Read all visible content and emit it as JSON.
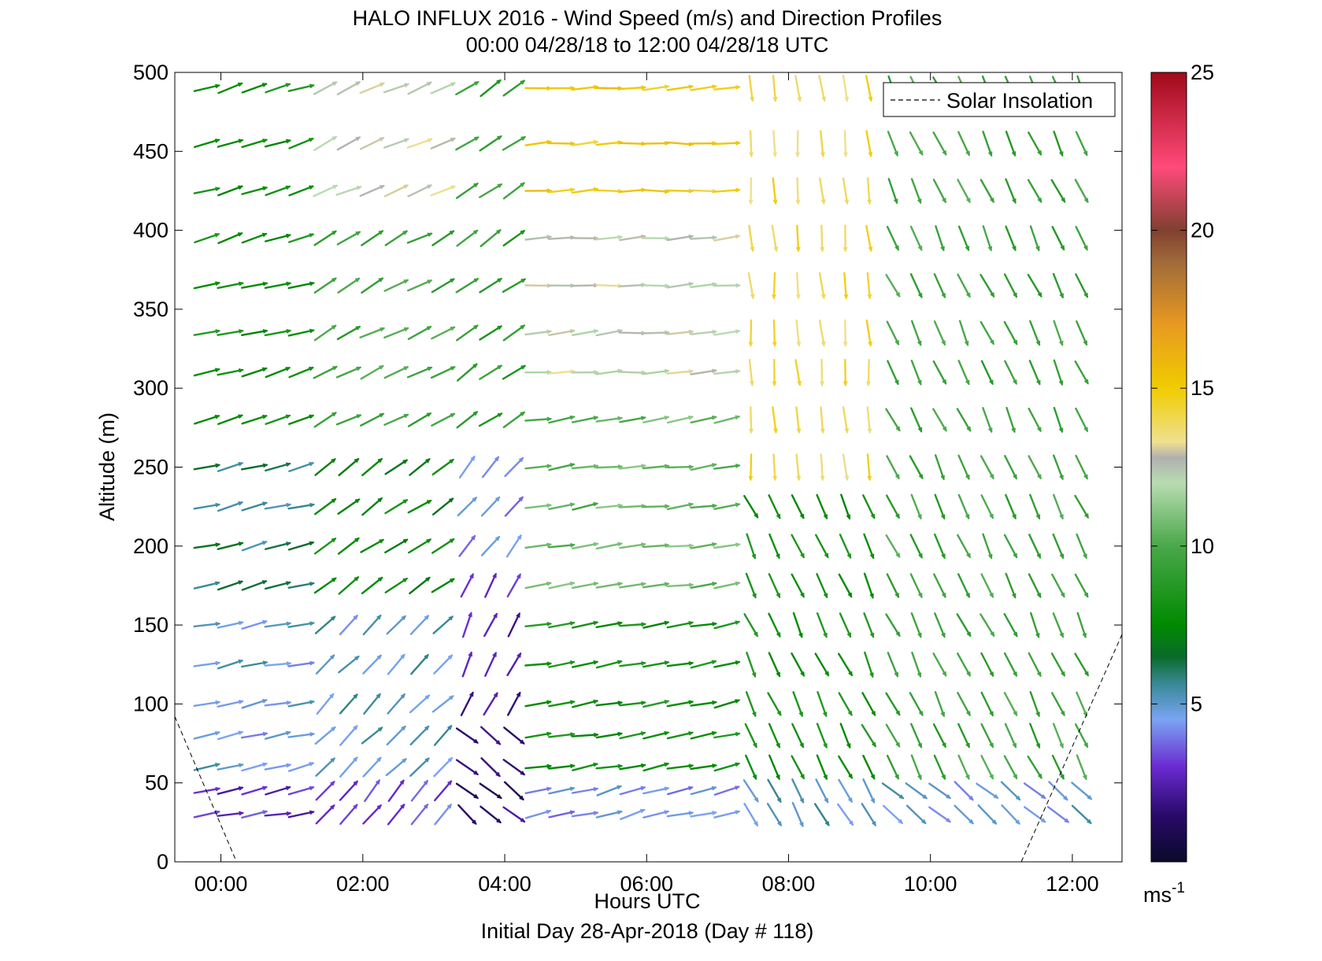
{
  "chart_data": {
    "type": "wind-barb-profile",
    "title": "HALO INFLUX 2016 - Wind Speed (m/s) and Direction Profiles",
    "subtitle": "00:00 04/28/18 to 12:00 04/28/18  UTC",
    "xlabel": "Hours UTC",
    "x_sublabel": "Initial Day 28-Apr-2018 (Day # 118)",
    "ylabel": "Altitude (m)",
    "x_ticks": [
      "00:00",
      "02:00",
      "04:00",
      "06:00",
      "08:00",
      "10:00",
      "12:00"
    ],
    "x_tick_hours": [
      0,
      2,
      4,
      6,
      8,
      10,
      12
    ],
    "xlim_hours": [
      -0.65,
      12.7
    ],
    "y_ticks": [
      "0",
      "50",
      "100",
      "150",
      "200",
      "250",
      "300",
      "350",
      "400",
      "450",
      "500"
    ],
    "ylim": [
      0,
      500
    ],
    "legend": {
      "label": "Solar Insolation",
      "placement": "top-right"
    },
    "colorbar": {
      "ticks": [
        "5",
        "10",
        "15",
        "20",
        "25"
      ],
      "range": [
        0,
        25
      ],
      "unit_label": "ms",
      "unit_exponent": "-1",
      "stops": [
        {
          "v": 0,
          "c": "#0a0a2a"
        },
        {
          "v": 1.5,
          "c": "#2a0a6a"
        },
        {
          "v": 3,
          "c": "#6a2ad0"
        },
        {
          "v": 4.5,
          "c": "#7aa4f4"
        },
        {
          "v": 5.6,
          "c": "#3a8a9a"
        },
        {
          "v": 6.5,
          "c": "#0a6a2a"
        },
        {
          "v": 7.5,
          "c": "#008a00"
        },
        {
          "v": 10,
          "c": "#4aa84a"
        },
        {
          "v": 12,
          "c": "#b8dcb0"
        },
        {
          "v": 12.8,
          "c": "#b0b0b0"
        },
        {
          "v": 13.3,
          "c": "#f0e090"
        },
        {
          "v": 15,
          "c": "#f0cc00"
        },
        {
          "v": 17,
          "c": "#e89a20"
        },
        {
          "v": 19,
          "c": "#a06a3a"
        },
        {
          "v": 20,
          "c": "#804030"
        },
        {
          "v": 22,
          "c": "#ff4a7a"
        },
        {
          "v": 25,
          "c": "#a00a1a"
        }
      ]
    },
    "times_hours": [
      -0.2,
      0.13,
      0.47,
      0.8,
      1.13,
      1.47,
      1.8,
      2.13,
      2.47,
      2.8,
      3.13,
      3.47,
      3.8,
      4.13,
      4.47,
      4.8,
      5.13,
      5.47,
      5.8,
      6.13,
      6.47,
      6.8,
      7.13,
      7.47,
      7.8,
      8.13,
      8.47,
      8.8,
      9.13,
      9.47,
      9.8,
      10.13,
      10.47,
      10.8,
      11.13,
      11.47,
      11.8,
      12.13
    ],
    "altitudes_m": [
      30,
      45,
      60,
      80,
      100,
      125,
      150,
      175,
      200,
      225,
      250,
      280,
      310,
      335,
      365,
      395,
      425,
      455,
      490
    ],
    "wind_direction_note": "direction_deg = bearing the wind blows toward (0 = north / up, 90 = east / right)",
    "regimes": [
      {
        "t0": -0.3,
        "t1": 1.2,
        "z0": 0,
        "z1": 60,
        "dir": 80,
        "speed": 3.0
      },
      {
        "t0": -0.3,
        "t1": 1.2,
        "z0": 60,
        "z1": 160,
        "dir": 78,
        "speed": 4.8
      },
      {
        "t0": -0.3,
        "t1": 1.2,
        "z0": 160,
        "z1": 270,
        "dir": 76,
        "speed": 6.0
      },
      {
        "t0": -0.3,
        "t1": 1.2,
        "z0": 270,
        "z1": 520,
        "dir": 74,
        "speed": 8.0
      },
      {
        "t0": 1.2,
        "t1": 3.3,
        "z0": 0,
        "z1": 60,
        "dir": 40,
        "speed": 3.5
      },
      {
        "t0": 1.2,
        "t1": 3.3,
        "z0": 60,
        "z1": 160,
        "dir": 45,
        "speed": 5.0
      },
      {
        "t0": 1.2,
        "t1": 3.3,
        "z0": 160,
        "z1": 280,
        "dir": 55,
        "speed": 7.5
      },
      {
        "t0": 1.2,
        "t1": 3.3,
        "z0": 280,
        "z1": 400,
        "dir": 62,
        "speed": 9.5
      },
      {
        "t0": 1.2,
        "t1": 3.3,
        "z0": 400,
        "z1": 520,
        "dir": 65,
        "speed": 12.5
      },
      {
        "t0": 3.3,
        "t1": 4.3,
        "z0": 0,
        "z1": 100,
        "dir": 130,
        "speed": 1.5
      },
      {
        "t0": 3.3,
        "t1": 4.3,
        "z0": 100,
        "z1": 180,
        "dir": 25,
        "speed": 2.5
      },
      {
        "t0": 3.3,
        "t1": 4.3,
        "z0": 180,
        "z1": 280,
        "dir": 40,
        "speed": 4.2
      },
      {
        "t0": 3.3,
        "t1": 4.3,
        "z0": 280,
        "z1": 520,
        "dir": 55,
        "speed": 9.0
      },
      {
        "t0": 4.3,
        "t1": 7.3,
        "z0": 0,
        "z1": 50,
        "dir": 75,
        "speed": 4.5
      },
      {
        "t0": 4.3,
        "t1": 7.3,
        "z0": 50,
        "z1": 170,
        "dir": 80,
        "speed": 8.0
      },
      {
        "t0": 4.3,
        "t1": 7.3,
        "z0": 170,
        "z1": 300,
        "dir": 82,
        "speed": 10.5
      },
      {
        "t0": 4.3,
        "t1": 7.3,
        "z0": 300,
        "z1": 400,
        "dir": 85,
        "speed": 12.5
      },
      {
        "t0": 4.3,
        "t1": 7.3,
        "z0": 400,
        "z1": 520,
        "dir": 88,
        "speed": 15.0
      },
      {
        "t0": 7.3,
        "t1": 9.4,
        "z0": 0,
        "z1": 60,
        "dir": 150,
        "speed": 5.0
      },
      {
        "t0": 7.3,
        "t1": 9.4,
        "z0": 60,
        "z1": 250,
        "dir": 155,
        "speed": 8.0
      },
      {
        "t0": 7.3,
        "t1": 9.4,
        "z0": 250,
        "z1": 520,
        "dir": 175,
        "speed": 14.0
      },
      {
        "t0": 9.4,
        "t1": 12.3,
        "z0": 0,
        "z1": 60,
        "dir": 130,
        "speed": 4.8
      },
      {
        "t0": 9.4,
        "t1": 12.3,
        "z0": 60,
        "z1": 520,
        "dir": 155,
        "speed": 9.5
      }
    ],
    "solar_insolation_segments": [
      {
        "x0": -0.65,
        "y0": 92,
        "x1": 0.22,
        "y1": 0
      },
      {
        "x0": 11.28,
        "y0": 0,
        "x1": 12.7,
        "y1": 144
      }
    ]
  }
}
